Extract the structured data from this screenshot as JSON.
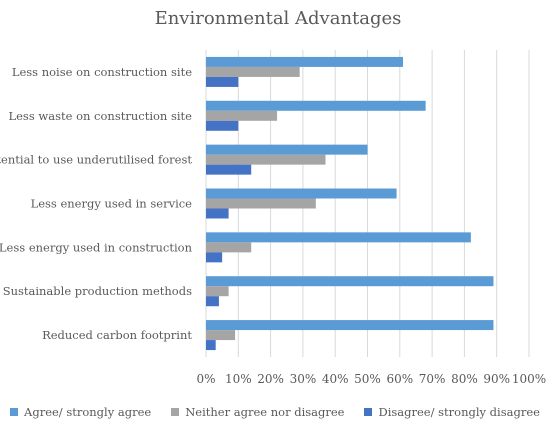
{
  "chart_data": {
    "type": "bar",
    "orientation": "horizontal",
    "title": "Environmental Advantages",
    "categories": [
      "Less noise on construction site",
      "Less waste on construction site",
      "Potential to use underutilised forest",
      "Less energy used in service",
      "Less energy used in construction",
      "Sustainable production methods",
      "Reduced carbon footprint"
    ],
    "series": [
      {
        "name": "Agree/ strongly agree",
        "color": "#5B9BD5",
        "values": [
          61,
          68,
          50,
          59,
          82,
          89,
          89
        ]
      },
      {
        "name": "Neither agree nor disagree",
        "color": "#A5A5A5",
        "values": [
          29,
          22,
          37,
          34,
          14,
          7,
          9
        ]
      },
      {
        "name": "Disagree/ strongly disagree",
        "color": "#4472C4",
        "values": [
          10,
          10,
          14,
          7,
          5,
          4,
          3
        ]
      }
    ],
    "x_ticks": [
      "0%",
      "10%",
      "20%",
      "30%",
      "40%",
      "50%",
      "60%",
      "70%",
      "80%",
      "90%",
      "100%"
    ],
    "xlim": [
      0,
      100
    ],
    "grid": true,
    "legend_position": "bottom"
  }
}
